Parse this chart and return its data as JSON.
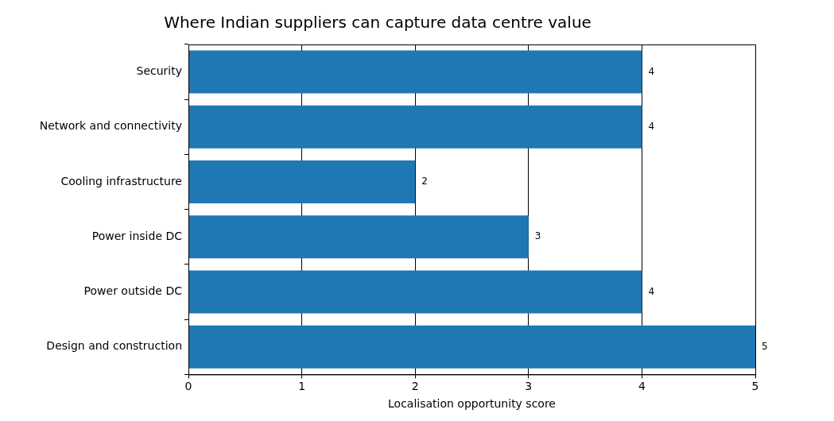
{
  "chart_data": {
    "type": "bar",
    "orientation": "horizontal",
    "title": "Where Indian suppliers can capture data centre value",
    "xlabel": "Localisation opportunity score",
    "categories": [
      "Security",
      "Network and connectivity",
      "Cooling infrastructure",
      "Power inside DC",
      "Power outside DC",
      "Design and construction"
    ],
    "values": [
      4,
      4,
      2,
      3,
      4,
      5
    ],
    "color": "#1f77b4",
    "xlim": [
      0,
      5
    ],
    "xticks": [
      0,
      1,
      2,
      3,
      4,
      5
    ],
    "grid": "x",
    "data_labels": true
  }
}
